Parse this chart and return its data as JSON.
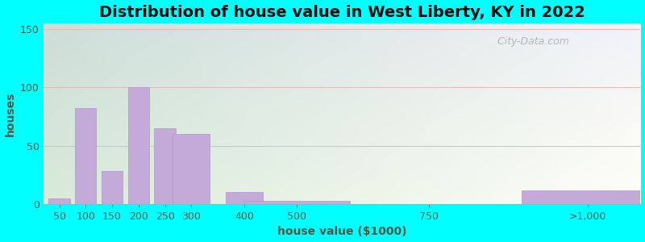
{
  "title": "Distribution of house value in West Liberty, KY in 2022",
  "xlabel": "house value ($1000)",
  "ylabel": "houses",
  "bar_labels": [
    "50",
    "100",
    "150",
    "200",
    "250",
    "300",
    "400",
    "500",
    "750",
    ">1,000"
  ],
  "bar_values": [
    5,
    82,
    28,
    100,
    65,
    60,
    10,
    3,
    0,
    12
  ],
  "bar_color": "#c4aad8",
  "bar_edge_color": "#b09ac8",
  "yticks": [
    0,
    50,
    100,
    150
  ],
  "ylim": [
    0,
    155
  ],
  "xlim": [
    20,
    1150
  ],
  "outer_bg": "#00ffff",
  "watermark": "  City-Data.com",
  "title_fontsize": 14,
  "axis_label_fontsize": 10,
  "tick_fontsize": 9,
  "grid_color": "#dddddd",
  "bg_left_top": "#d0e8d0",
  "bg_right_bottom": "#f0ede8"
}
